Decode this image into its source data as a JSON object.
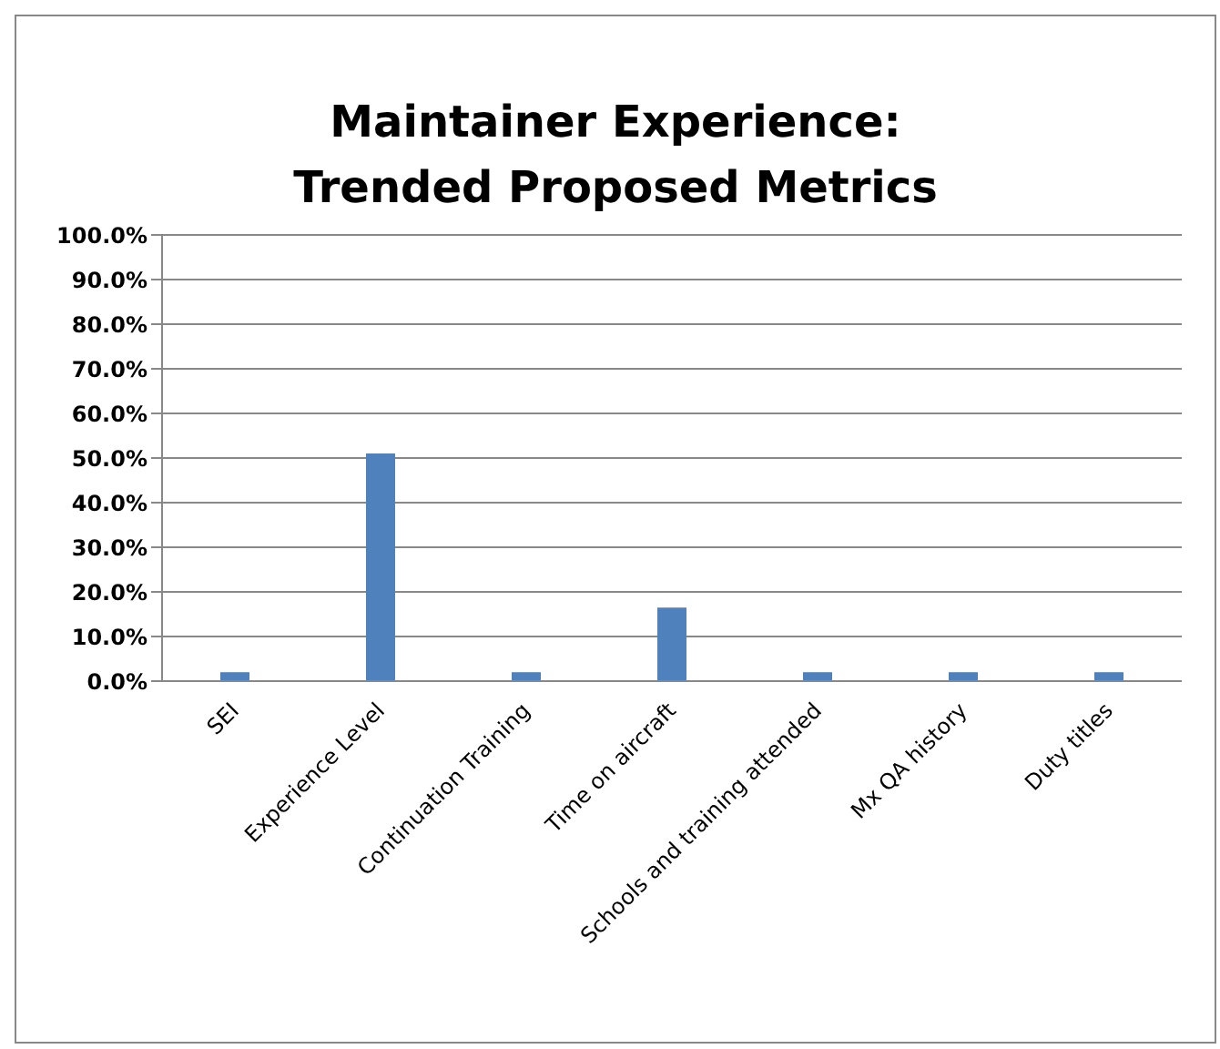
{
  "chart_data": {
    "type": "bar",
    "title": "Maintainer Experience:\nTrended Proposed Metrics",
    "categories": [
      "SEI",
      "Experience Level",
      "Continuation Training",
      "Time on aircraft",
      "Schools and training attended",
      "Mx QA history",
      "Duty titles"
    ],
    "values": [
      2,
      51,
      2,
      16.5,
      2,
      2,
      2
    ],
    "color": "#4f81bd",
    "ylim": [
      0,
      100
    ],
    "yticks": [
      {
        "value": 0,
        "label": "0.0%"
      },
      {
        "value": 10,
        "label": "10.0%"
      },
      {
        "value": 20,
        "label": "20.0%"
      },
      {
        "value": 30,
        "label": "30.0%"
      },
      {
        "value": 40,
        "label": "40.0%"
      },
      {
        "value": 50,
        "label": "50.0%"
      },
      {
        "value": 60,
        "label": "60.0%"
      },
      {
        "value": 70,
        "label": "70.0%"
      },
      {
        "value": 80,
        "label": "80.0%"
      },
      {
        "value": 90,
        "label": "90.0%"
      },
      {
        "value": 100,
        "label": "100.0%"
      }
    ],
    "grid": "y",
    "legend": false
  }
}
